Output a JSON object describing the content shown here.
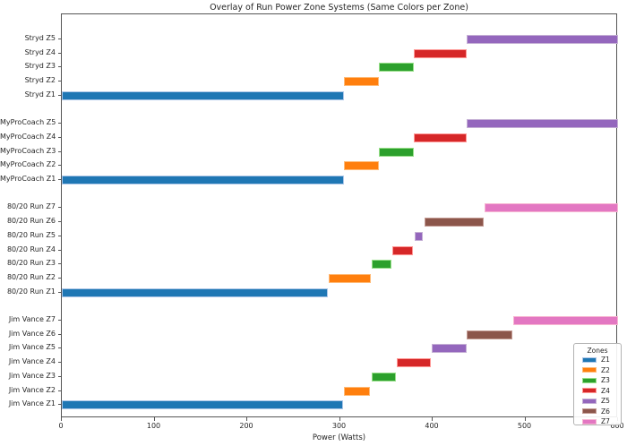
{
  "chart_data": {
    "type": "bar",
    "orientation": "horizontal",
    "title": "Overlay of Run Power Zone Systems (Same Colors per Zone)",
    "xlabel": "Power (Watts)",
    "ylabel": "",
    "xlim": [
      0,
      600
    ],
    "xticks": [
      0,
      100,
      200,
      300,
      400,
      500,
      600
    ],
    "grid": false,
    "legend": {
      "title": "Zones",
      "position": "lower right",
      "entries": [
        "Z1",
        "Z2",
        "Z3",
        "Z4",
        "Z5",
        "Z6",
        "Z7"
      ]
    },
    "zone_colors": {
      "Z1": "#1f77b4",
      "Z2": "#ff7f0e",
      "Z3": "#2ca02c",
      "Z4": "#d62728",
      "Z5": "#9467bd",
      "Z6": "#8c564b",
      "Z7": "#e377c2"
    },
    "zone_edge_colors": {
      "Z1": "#aec7e8",
      "Z2": "#ffbb78",
      "Z3": "#98df8a",
      "Z4": "#ff9896",
      "Z5": "#c5b0d5",
      "Z6": "#c49c94",
      "Z7": "#f7b6d2"
    },
    "groups": [
      {
        "name": "Stryd",
        "rows": [
          {
            "label": "Stryd Z5",
            "zone": "Z5",
            "start": 437,
            "end": 600
          },
          {
            "label": "Stryd Z4",
            "zone": "Z4",
            "start": 380,
            "end": 437
          },
          {
            "label": "Stryd Z3",
            "zone": "Z3",
            "start": 342,
            "end": 380
          },
          {
            "label": "Stryd Z2",
            "zone": "Z2",
            "start": 304,
            "end": 342
          },
          {
            "label": "Stryd Z1",
            "zone": "Z1",
            "start": 0,
            "end": 304
          }
        ]
      },
      {
        "name": "MyProCoach",
        "rows": [
          {
            "label": "MyProCoach Z5",
            "zone": "Z5",
            "start": 437,
            "end": 600
          },
          {
            "label": "MyProCoach Z4",
            "zone": "Z4",
            "start": 380,
            "end": 437
          },
          {
            "label": "MyProCoach Z3",
            "zone": "Z3",
            "start": 342,
            "end": 380
          },
          {
            "label": "MyProCoach Z2",
            "zone": "Z2",
            "start": 304,
            "end": 342
          },
          {
            "label": "MyProCoach Z1",
            "zone": "Z1",
            "start": 0,
            "end": 304
          }
        ]
      },
      {
        "name": "80/20 Run",
        "rows": [
          {
            "label": "80/20 Run Z7",
            "zone": "Z7",
            "start": 456,
            "end": 600
          },
          {
            "label": "80/20 Run Z6",
            "zone": "Z6",
            "start": 391,
            "end": 455
          },
          {
            "label": "80/20 Run Z5",
            "zone": "Z5",
            "start": 381,
            "end": 389
          },
          {
            "label": "80/20 Run Z4",
            "zone": "Z4",
            "start": 357,
            "end": 379
          },
          {
            "label": "80/20 Run Z3",
            "zone": "Z3",
            "start": 334,
            "end": 356
          },
          {
            "label": "80/20 Run Z2",
            "zone": "Z2",
            "start": 288,
            "end": 333
          },
          {
            "label": "80/20 Run Z1",
            "zone": "Z1",
            "start": 0,
            "end": 287
          }
        ]
      },
      {
        "name": "Jim Vance",
        "rows": [
          {
            "label": "Jim Vance Z7",
            "zone": "Z7",
            "start": 487,
            "end": 600
          },
          {
            "label": "Jim Vance Z6",
            "zone": "Z6",
            "start": 437,
            "end": 486
          },
          {
            "label": "Jim Vance Z5",
            "zone": "Z5",
            "start": 399,
            "end": 437
          },
          {
            "label": "Jim Vance Z4",
            "zone": "Z4",
            "start": 361,
            "end": 398
          },
          {
            "label": "Jim Vance Z3",
            "zone": "Z3",
            "start": 334,
            "end": 360
          },
          {
            "label": "Jim Vance Z2",
            "zone": "Z2",
            "start": 304,
            "end": 332
          },
          {
            "label": "Jim Vance Z1",
            "zone": "Z1",
            "start": 0,
            "end": 303
          }
        ]
      }
    ]
  },
  "colors": {
    "background": "#ffffff",
    "spine": "#555555",
    "text": "#262626"
  }
}
